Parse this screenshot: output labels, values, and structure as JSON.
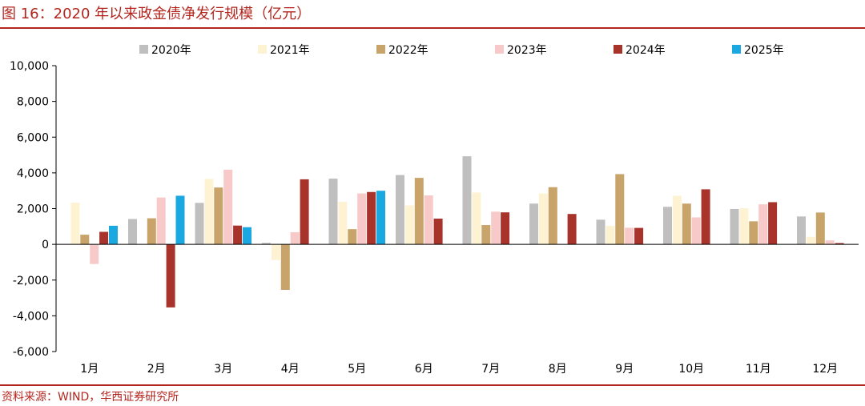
{
  "figure": {
    "title": "图 16：2020 年以来政金债净发行规模（亿元）",
    "source": "资料来源：WIND，华西证券研究所"
  },
  "chart_data": {
    "type": "bar",
    "title": "",
    "xlabel": "",
    "ylabel": "",
    "categories": [
      "1月",
      "2月",
      "3月",
      "4月",
      "5月",
      "6月",
      "7月",
      "8月",
      "9月",
      "10月",
      "11月",
      "12月"
    ],
    "ylim": [
      -6000,
      10000
    ],
    "yticks": [
      -6000,
      -4000,
      -2000,
      0,
      2000,
      4000,
      6000,
      8000,
      10000
    ],
    "ytick_labels": [
      "-6,000",
      "-4,000",
      "-2,000",
      "0",
      "2,000",
      "4,000",
      "6,000",
      "8,000",
      "10,000"
    ],
    "grid": false,
    "legend_position": "top",
    "series": [
      {
        "name": "2020年",
        "color": "#bfbfbf",
        "values": [
          0,
          1420,
          2320,
          80,
          3680,
          3880,
          4930,
          2280,
          1380,
          2100,
          1980,
          1560
        ]
      },
      {
        "name": "2021年",
        "color": "#fdf3d2",
        "values": [
          2330,
          0,
          3660,
          -880,
          2380,
          2180,
          2900,
          2850,
          1030,
          2720,
          2020,
          420
        ]
      },
      {
        "name": "2022年",
        "color": "#c8a46a",
        "values": [
          540,
          1460,
          3180,
          -2550,
          850,
          3720,
          1080,
          3200,
          3930,
          2280,
          1290,
          1780
        ]
      },
      {
        "name": "2023年",
        "color": "#f7c9c9",
        "values": [
          -1100,
          2620,
          4180,
          680,
          2850,
          2740,
          1830,
          0,
          930,
          1510,
          2240,
          220
        ]
      },
      {
        "name": "2024年",
        "color": "#a8332b",
        "values": [
          700,
          -3530,
          1050,
          3640,
          2930,
          1440,
          1790,
          1700,
          920,
          3080,
          2360,
          70
        ]
      },
      {
        "name": "2025年",
        "color": "#19a8e0",
        "values": [
          1040,
          2720,
          960,
          null,
          3000,
          null,
          null,
          null,
          null,
          null,
          null,
          null
        ]
      }
    ]
  }
}
